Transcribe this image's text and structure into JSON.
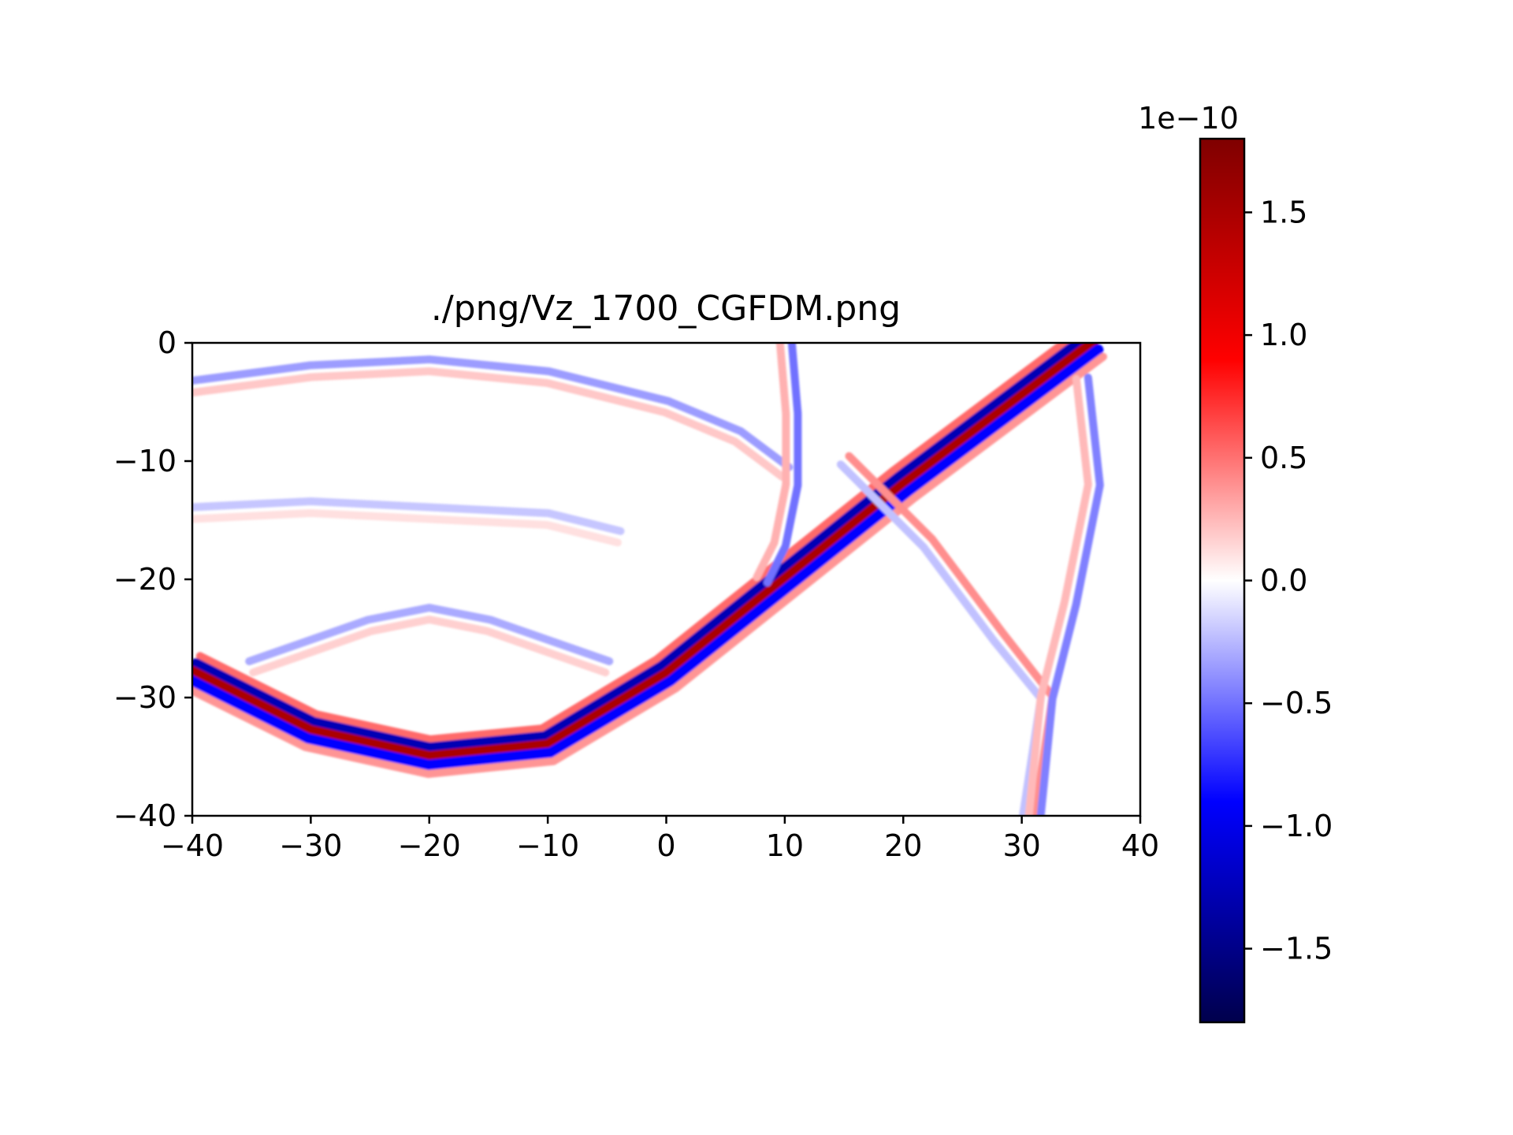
{
  "chart_data": {
    "type": "heatmap",
    "title": "./png/Vz_1700_CGFDM.png",
    "xlabel": "",
    "ylabel": "",
    "xlim": [
      -40,
      40
    ],
    "ylim": [
      -40,
      0
    ],
    "x_ticks": [
      -40,
      -30,
      -20,
      -10,
      0,
      10,
      20,
      30,
      40
    ],
    "x_tick_labels": [
      "−40",
      "−30",
      "−20",
      "−10",
      "0",
      "10",
      "20",
      "30",
      "40"
    ],
    "y_ticks": [
      0,
      -10,
      -20,
      -30,
      -40
    ],
    "y_tick_labels": [
      "0",
      "−10",
      "−20",
      "−30",
      "−40"
    ],
    "colormap": "seismic",
    "colormap_stops": [
      "#00004c",
      "#0000ff",
      "#ffffff",
      "#ff0000",
      "#7f0000"
    ],
    "colorbar": {
      "range": [
        -1.8,
        1.8
      ],
      "multiplier": "1e−10",
      "ticks": [
        1.5,
        1.0,
        0.5,
        0.0,
        -0.5,
        -1.0,
        -1.5
      ],
      "tick_labels": [
        "1.5",
        "1.0",
        "0.5",
        "0.0",
        "−0.5",
        "−1.0",
        "−1.5"
      ]
    },
    "grid": false,
    "features": [
      {
        "name": "main wavefront",
        "points": [
          [
            -40,
            -27.8
          ],
          [
            -30,
            -32.8
          ],
          [
            -20,
            -35
          ],
          [
            -10,
            -34
          ],
          [
            0,
            -28
          ],
          [
            5,
            -24
          ],
          [
            10,
            -20
          ],
          [
            20,
            -12
          ],
          [
            30,
            -4.5
          ],
          [
            36,
            0
          ]
        ],
        "amplitude": 1.5
      },
      {
        "name": "upper arc",
        "points": [
          [
            -40,
            -3.8
          ],
          [
            -30,
            -2.5
          ],
          [
            -20,
            -2
          ],
          [
            -10,
            -3
          ],
          [
            0,
            -5.5
          ],
          [
            6,
            -8
          ],
          [
            10,
            -11
          ]
        ],
        "amplitude": -0.35
      },
      {
        "name": "lower arc",
        "points": [
          [
            -35,
            -27.5
          ],
          [
            -25,
            -24
          ],
          [
            -20,
            -23
          ],
          [
            -15,
            -24
          ],
          [
            -5,
            -27.5
          ]
        ],
        "amplitude": -0.3
      },
      {
        "name": "inner arc",
        "points": [
          [
            -40,
            -14.5
          ],
          [
            -30,
            -14
          ],
          [
            -20,
            -14.5
          ],
          [
            -10,
            -15
          ],
          [
            -4,
            -16.5
          ]
        ],
        "amplitude": -0.2
      },
      {
        "name": "source column",
        "points": [
          [
            10,
            0
          ],
          [
            10.5,
            -6
          ],
          [
            10.5,
            -12
          ],
          [
            9.5,
            -17
          ],
          [
            8,
            -20
          ]
        ],
        "amplitude": -0.5
      },
      {
        "name": "right branch",
        "points": [
          [
            15,
            -10
          ],
          [
            22,
            -17
          ],
          [
            28,
            -25
          ],
          [
            32,
            -30
          ],
          [
            30.5,
            -40
          ]
        ],
        "amplitude": 0.4
      },
      {
        "name": "right arc",
        "points": [
          [
            35,
            -3
          ],
          [
            36,
            -12
          ],
          [
            34,
            -22
          ],
          [
            32,
            -30
          ],
          [
            31,
            -40
          ]
        ],
        "amplitude": -0.45
      }
    ]
  }
}
